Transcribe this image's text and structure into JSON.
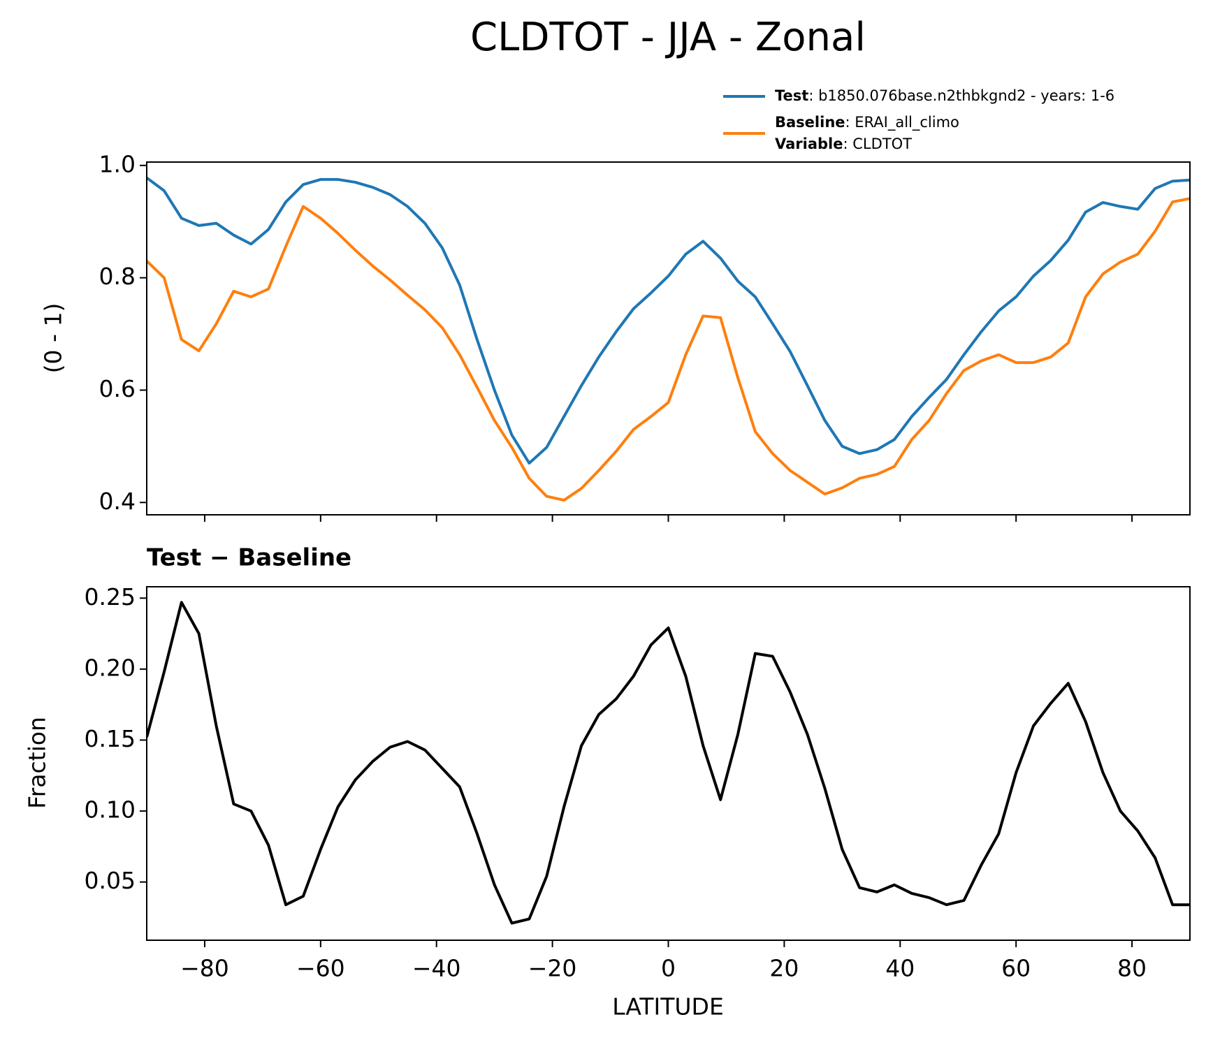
{
  "chart_data": [
    {
      "type": "line",
      "title": "CLDTOT - JJA - Zonal",
      "ylabel": "(0 - 1)",
      "x": [
        -90,
        -87,
        -84,
        -81,
        -78,
        -75,
        -72,
        -69,
        -66,
        -63,
        -60,
        -57,
        -54,
        -51,
        -48,
        -45,
        -42,
        -39,
        -36,
        -33,
        -30,
        -27,
        -24,
        -21,
        -18,
        -15,
        -12,
        -9,
        -6,
        -3,
        0,
        3,
        6,
        9,
        12,
        15,
        18,
        21,
        24,
        27,
        30,
        33,
        36,
        39,
        42,
        45,
        48,
        51,
        54,
        57,
        60,
        63,
        66,
        69,
        72,
        75,
        78,
        81,
        84,
        87,
        90
      ],
      "series": [
        {
          "name": "Test",
          "label": ": b1850.076base.n2thbkgnd2 - years: 1-6",
          "color": "#1f77b4",
          "values": [
            0.978,
            0.955,
            0.906,
            0.893,
            0.897,
            0.876,
            0.86,
            0.886,
            0.935,
            0.966,
            0.975,
            0.975,
            0.97,
            0.961,
            0.948,
            0.927,
            0.897,
            0.853,
            0.787,
            0.69,
            0.6,
            0.52,
            0.47,
            0.498,
            0.553,
            0.608,
            0.659,
            0.704,
            0.745,
            0.773,
            0.803,
            0.842,
            0.865,
            0.835,
            0.794,
            0.766,
            0.718,
            0.669,
            0.608,
            0.546,
            0.5,
            0.487,
            0.494,
            0.512,
            0.553,
            0.587,
            0.619,
            0.663,
            0.704,
            0.741,
            0.766,
            0.803,
            0.831,
            0.867,
            0.917,
            0.934,
            0.927,
            0.922,
            0.959,
            0.972,
            0.974
          ]
        },
        {
          "name": "Baseline",
          "label": ": ERAI_all_climo",
          "color": "#ff7f0e",
          "values": [
            0.83,
            0.8,
            0.69,
            0.67,
            0.718,
            0.776,
            0.766,
            0.78,
            0.856,
            0.927,
            0.906,
            0.879,
            0.849,
            0.821,
            0.796,
            0.769,
            0.743,
            0.711,
            0.663,
            0.605,
            0.546,
            0.498,
            0.443,
            0.411,
            0.404,
            0.425,
            0.457,
            0.491,
            0.53,
            0.553,
            0.578,
            0.663,
            0.732,
            0.729,
            0.622,
            0.526,
            0.487,
            0.457,
            0.436,
            0.415,
            0.426,
            0.443,
            0.45,
            0.464,
            0.512,
            0.546,
            0.594,
            0.635,
            0.652,
            0.663,
            0.649,
            0.649,
            0.659,
            0.684,
            0.766,
            0.807,
            0.828,
            0.842,
            0.883,
            0.935,
            0.941
          ]
        }
      ],
      "legend_note": {
        "key": "Variable",
        "text": ": CLDTOT"
      },
      "legend": "upper right",
      "xlim": [
        -90,
        90
      ],
      "xticks": [
        {
          "value": -80,
          "label": "−80"
        },
        {
          "value": -60,
          "label": "−60"
        },
        {
          "value": -40,
          "label": "−40"
        },
        {
          "value": -20,
          "label": "−20"
        },
        0,
        20,
        40,
        60,
        80
      ],
      "show_xticklabels": false,
      "ylim": [
        0.378,
        1.006
      ],
      "yticks": [
        0.4,
        0.6,
        0.8,
        {
          "value": 1.0,
          "label": "1.0"
        }
      ]
    },
    {
      "type": "line",
      "title": "Test − Baseline",
      "xlabel": "LATITUDE",
      "ylabel": "Fraction",
      "color": "#000000",
      "x": [
        -90,
        -87,
        -84,
        -81,
        -78,
        -75,
        -72,
        -69,
        -66,
        -63,
        -60,
        -57,
        -54,
        -51,
        -48,
        -45,
        -42,
        -39,
        -36,
        -33,
        -30,
        -27,
        -24,
        -21,
        -18,
        -15,
        -12,
        -9,
        -6,
        -3,
        0,
        3,
        6,
        9,
        12,
        15,
        18,
        21,
        24,
        27,
        30,
        33,
        36,
        39,
        42,
        45,
        48,
        51,
        54,
        57,
        60,
        63,
        66,
        69,
        72,
        75,
        78,
        81,
        84,
        87,
        90
      ],
      "values": [
        0.152,
        0.198,
        0.247,
        0.225,
        0.16,
        0.105,
        0.1,
        0.076,
        0.034,
        0.04,
        0.073,
        0.103,
        0.122,
        0.135,
        0.145,
        0.149,
        0.143,
        0.13,
        0.117,
        0.084,
        0.048,
        0.021,
        0.024,
        0.054,
        0.103,
        0.146,
        0.168,
        0.179,
        0.195,
        0.217,
        0.229,
        0.195,
        0.146,
        0.108,
        0.154,
        0.211,
        0.209,
        0.184,
        0.154,
        0.116,
        0.073,
        0.046,
        0.043,
        0.048,
        0.042,
        0.039,
        0.034,
        0.037,
        0.062,
        0.084,
        0.127,
        0.16,
        0.176,
        0.19,
        0.163,
        0.127,
        0.1,
        0.086,
        0.067,
        0.034,
        0.034
      ],
      "xlim": [
        -90,
        90
      ],
      "xticks": [
        {
          "value": -80,
          "label": "−80"
        },
        {
          "value": -60,
          "label": "−60"
        },
        {
          "value": -40,
          "label": "−40"
        },
        {
          "value": -20,
          "label": "−20"
        },
        0,
        20,
        40,
        60,
        80
      ],
      "show_xticklabels": true,
      "ylim": [
        0.009,
        0.258
      ],
      "yticks": [
        0.05,
        {
          "value": 0.1,
          "label": "0.10"
        },
        0.15,
        {
          "value": 0.2,
          "label": "0.20"
        },
        0.25
      ]
    }
  ]
}
